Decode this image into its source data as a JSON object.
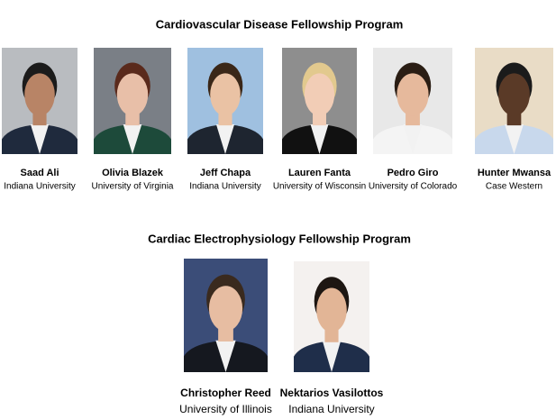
{
  "sections": [
    {
      "title": "Cardiovascular Disease Fellowship Program",
      "people": [
        {
          "name": "Saad Ali",
          "affiliation": "Indiana University"
        },
        {
          "name": "Olivia Blazek",
          "affiliation": "University of Virginia"
        },
        {
          "name": "Jeff Chapa",
          "affiliation": "Indiana University"
        },
        {
          "name": "Lauren Fanta",
          "affiliation": "University of Wisconsin"
        },
        {
          "name": "Pedro Giro",
          "affiliation": "University of Colorado"
        },
        {
          "name": "Hunter Mwansa",
          "affiliation": "Case Western"
        }
      ]
    },
    {
      "title": "Cardiac Electrophysiology Fellowship Program",
      "people": [
        {
          "name": "Christopher Reed",
          "affiliation": "University of Illinois"
        },
        {
          "name": "Nektarios Vasilottos",
          "affiliation": "Indiana University"
        }
      ]
    }
  ]
}
